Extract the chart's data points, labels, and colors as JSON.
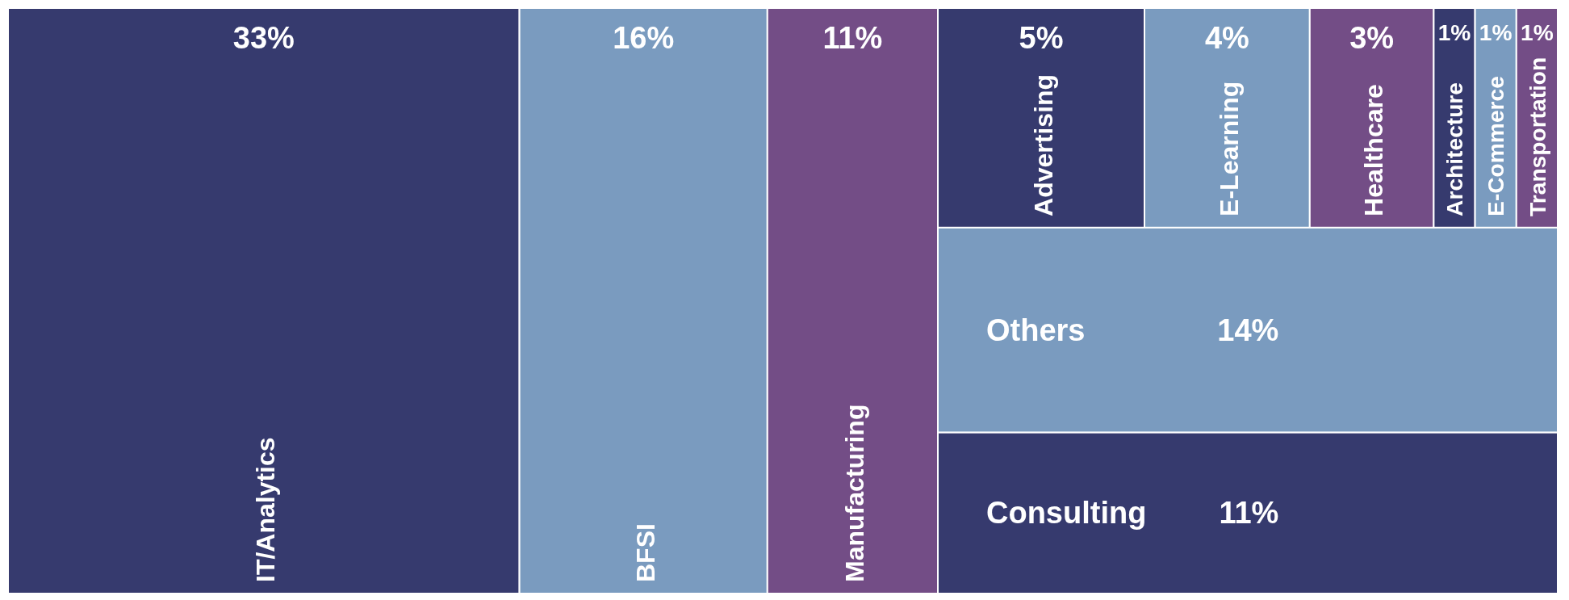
{
  "chart_data": {
    "type": "other",
    "categories": [
      "IT/Analytics",
      "BFSI",
      "Manufacturing",
      "Advertising",
      "E-Learning",
      "Healthcare",
      "Architecture",
      "E-Commerce",
      "Transportation",
      "Others",
      "Consulting"
    ],
    "values": [
      33,
      16,
      11,
      5,
      4,
      3,
      1,
      1,
      1,
      14,
      11
    ],
    "colors": [
      "#363a6e",
      "#7a9bbf",
      "#734d86",
      "#363a6e",
      "#7a9bbf",
      "#734d86",
      "#363a6e",
      "#7a9bbf",
      "#734d86",
      "#7a9bbf",
      "#363a6e"
    ],
    "value_labels": [
      "33%",
      "16%",
      "11%",
      "5%",
      "4%",
      "3%",
      "1%",
      "1%",
      "1%",
      "14%",
      "11%"
    ]
  }
}
